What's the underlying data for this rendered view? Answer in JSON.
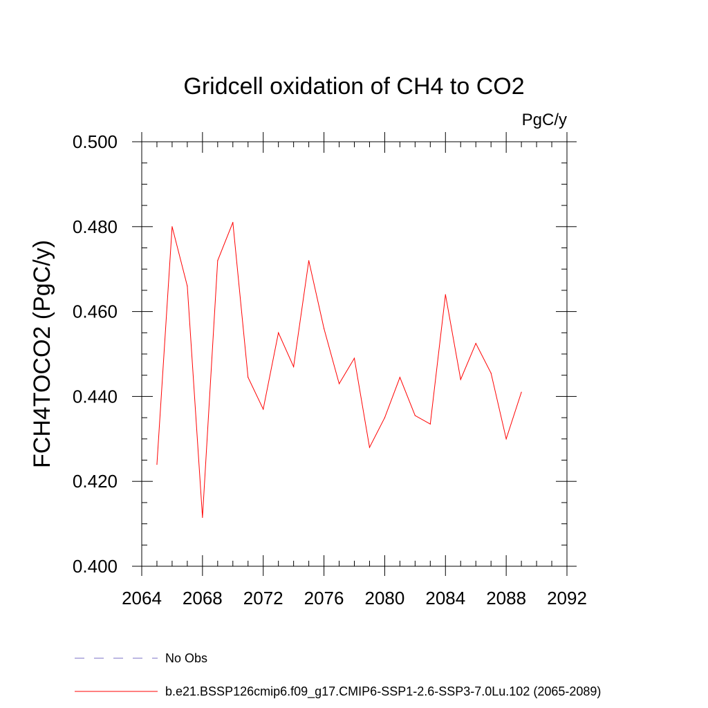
{
  "chart_data": {
    "type": "line",
    "title": "Gridcell oxidation of CH4 to CO2",
    "units": "PgC/y",
    "ylabel": "FCH4TOCO2  (PgC/y)",
    "xlabel": "",
    "xlim": [
      2064,
      2092
    ],
    "ylim": [
      0.4,
      0.5
    ],
    "xticks": [
      "2064",
      "2068",
      "2072",
      "2076",
      "2080",
      "2084",
      "2088",
      "2092"
    ],
    "yticks": [
      "0.400",
      "0.420",
      "0.440",
      "0.460",
      "0.480",
      "0.500"
    ],
    "grid": false,
    "legend_position": "bottom",
    "series": [
      {
        "name": "b.e21.BSSP126cmip6.f09_g17.CMIP6-SSP1-2.6-SSP3-7.0Lu.102 (2065-2089)",
        "color": "#ff0000",
        "dash": "solid",
        "x": [
          2065,
          2066,
          2067,
          2068,
          2069,
          2070,
          2071,
          2072,
          2073,
          2074,
          2075,
          2076,
          2077,
          2078,
          2079,
          2080,
          2081,
          2082,
          2083,
          2084,
          2085,
          2086,
          2087,
          2088,
          2089
        ],
        "values": [
          0.424,
          0.48,
          0.466,
          0.4115,
          0.472,
          0.481,
          0.4445,
          0.437,
          0.455,
          0.447,
          0.472,
          0.456,
          0.443,
          0.449,
          0.428,
          0.435,
          0.4445,
          0.4355,
          0.4335,
          0.464,
          0.444,
          0.4525,
          0.4455,
          0.43,
          0.441
        ]
      }
    ],
    "legend": [
      {
        "label": "No Obs",
        "color": "#7a6fc4",
        "dash": "dashed"
      },
      {
        "label": "b.e21.BSSP126cmip6.f09_g17.CMIP6-SSP1-2.6-SSP3-7.0Lu.102 (2065-2089)",
        "color": "#ff0000",
        "dash": "solid"
      }
    ]
  }
}
